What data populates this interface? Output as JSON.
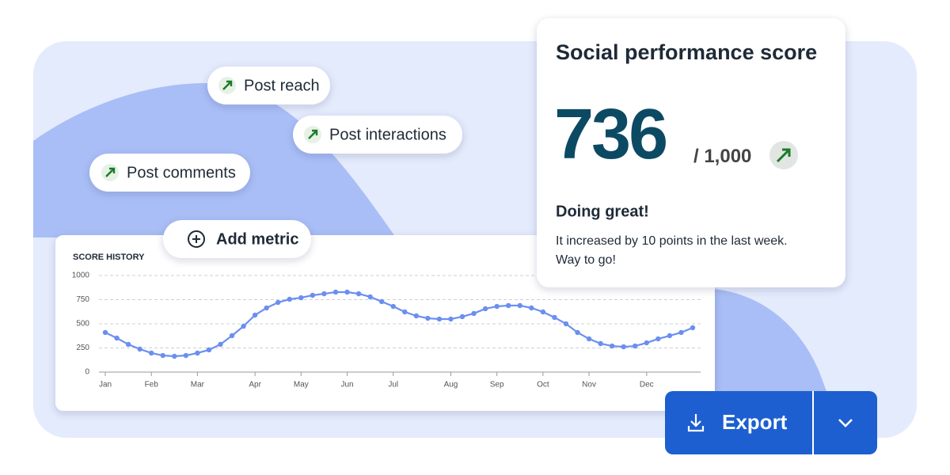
{
  "metrics": [
    "Post reach",
    "Post interactions",
    "Post comments"
  ],
  "add_metric": "Add metric",
  "score_card": {
    "title": "Social performance score",
    "score": 736,
    "out_of": "/ 1,000",
    "status": "Doing great!",
    "message": [
      "It increased by 10 points in the last week.",
      "Way to go!"
    ]
  },
  "export_button": "Export",
  "chart_data": {
    "type": "line",
    "title": "SCORE HISTORY",
    "categories": [
      "Jan",
      null,
      null,
      null,
      "Feb",
      null,
      null,
      null,
      "Mar",
      null,
      null,
      null,
      null,
      "Apr",
      null,
      null,
      null,
      "May",
      null,
      null,
      null,
      "Jun",
      null,
      null,
      null,
      "Jul",
      null,
      null,
      null,
      null,
      "Aug",
      null,
      null,
      null,
      "Sep",
      null,
      null,
      null,
      "Oct",
      null,
      null,
      null,
      "Nov",
      null,
      null,
      null,
      null,
      "Dec",
      null,
      null,
      null,
      null
    ],
    "values": [
      410,
      352,
      287,
      238,
      197,
      172,
      164,
      172,
      197,
      230,
      287,
      377,
      475,
      590,
      664,
      721,
      754,
      770,
      795,
      811,
      828,
      828,
      811,
      779,
      730,
      680,
      623,
      582,
      557,
      549,
      549,
      574,
      607,
      656,
      680,
      689,
      689,
      664,
      623,
      566,
      500,
      410,
      344,
      295,
      270,
      262,
      270,
      303,
      344,
      377,
      410,
      459
    ],
    "color": "#6b8ff0",
    "ylim": [
      0,
      1000
    ],
    "yticks": [
      0,
      250,
      500,
      750,
      1000
    ],
    "grid": true
  }
}
